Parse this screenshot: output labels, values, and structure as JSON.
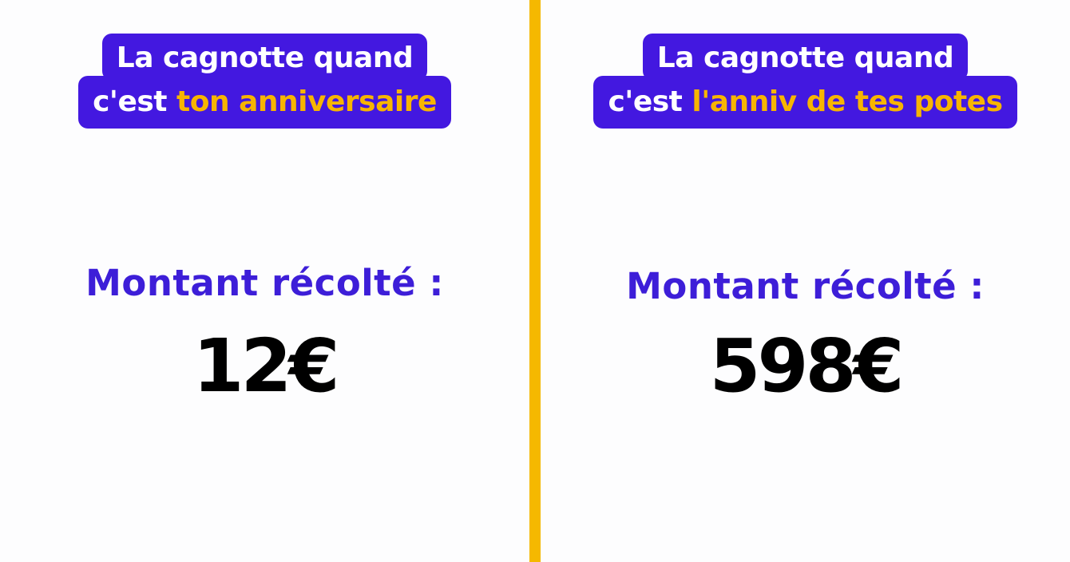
{
  "colors": {
    "purple": "#4318e0",
    "yellow": "#f7b500",
    "divider": "#f5b800"
  },
  "left": {
    "line1": "La cagnotte quand",
    "line2_prefix": "c'est ",
    "line2_highlight": "ton anniversaire",
    "label": "Montant récolté :",
    "amount": "12€"
  },
  "right": {
    "line1": "La cagnotte quand",
    "line2_prefix": "c'est ",
    "line2_highlight": "l'anniv de tes potes",
    "label": "Montant récolté :",
    "amount": "598€"
  }
}
